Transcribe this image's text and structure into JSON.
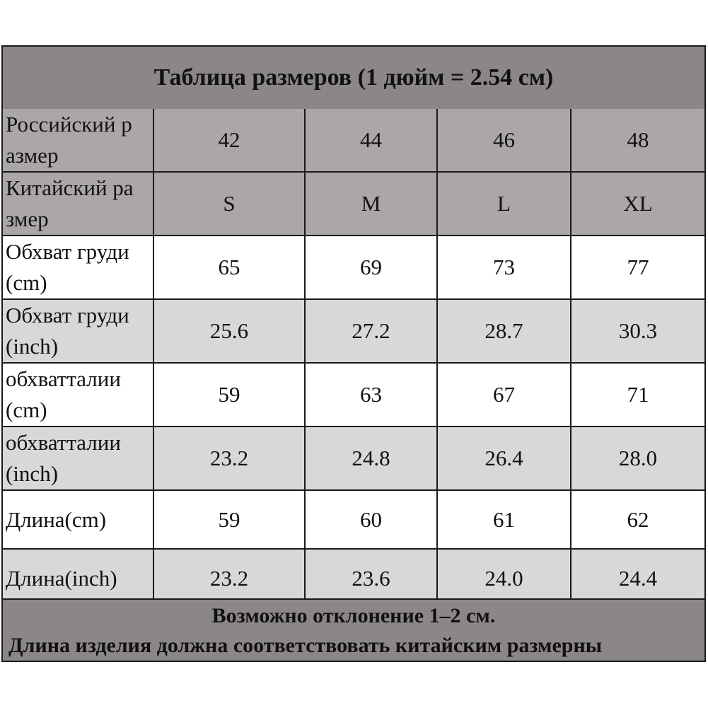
{
  "title": "Таблица размеров (1 дюйм = 2.54 см)",
  "rows": [
    {
      "label": "Российский р\nазмер",
      "values": [
        "42",
        "44",
        "46",
        "48"
      ]
    },
    {
      "label": "Китайский ра\nзмер",
      "values": [
        "S",
        "M",
        "L",
        "XL"
      ]
    },
    {
      "label": "Обхват груди\n(cm)",
      "values": [
        "65",
        "69",
        "73",
        "77"
      ]
    },
    {
      "label": "Обхват груди\n(inch)",
      "values": [
        "25.6",
        "27.2",
        "28.7",
        "30.3"
      ]
    },
    {
      "label": "обхватталии\n(cm)",
      "values": [
        "59",
        "63",
        "67",
        "71"
      ]
    },
    {
      "label": "обхватталии\n(inch)",
      "values": [
        "23.2",
        "24.8",
        "26.4",
        "28.0"
      ]
    },
    {
      "label": "Длина(cm)",
      "values": [
        "59",
        "60",
        "61",
        "62"
      ]
    },
    {
      "label": "Длина(inch)",
      "values": [
        "23.2",
        "23.6",
        "24.0",
        "24.4"
      ]
    }
  ],
  "footer": {
    "line1": "Возможно отклонение 1–2 см.",
    "line2": "Длина изделия должна соответствовать китайским размерны"
  },
  "colors": {
    "title_bg": "#8c8787",
    "header_bg": "#aca7a7",
    "shaded_bg": "#d9d7d7",
    "plain_bg": "#ffffff",
    "border": "#1a1a1a"
  }
}
